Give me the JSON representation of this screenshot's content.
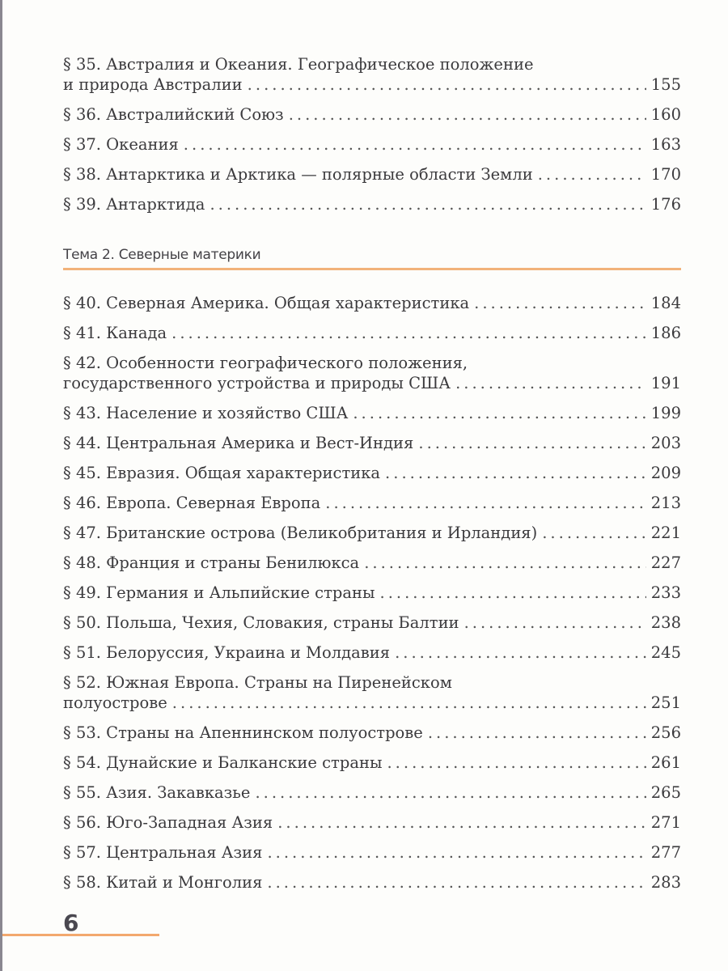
{
  "colors": {
    "accent": "#f2b27a",
    "text": "#3b3a3d"
  },
  "section_a": [
    {
      "lines": [
        "§ 35. Австралия и Океания. Географическое положение",
        "и природа Австралии"
      ],
      "page": "155"
    },
    {
      "lines": [
        "§ 36. Австралийский Союз"
      ],
      "page": "160"
    },
    {
      "lines": [
        "§ 37. Океания"
      ],
      "page": "163"
    },
    {
      "lines": [
        "§ 38. Антарктика и Арктика — полярные области Земли"
      ],
      "page": "170"
    },
    {
      "lines": [
        "§ 39. Антарктида"
      ],
      "page": "176"
    }
  ],
  "theme_heading": "Тема 2. Северные материки",
  "section_b": [
    {
      "lines": [
        "§ 40. Северная Америка. Общая характеристика"
      ],
      "page": "184"
    },
    {
      "lines": [
        "§ 41. Канада"
      ],
      "page": "186"
    },
    {
      "lines": [
        "§ 42. Особенности географического положения,",
        "государственного устройства и природы США"
      ],
      "page": "191"
    },
    {
      "lines": [
        "§ 43. Население и хозяйство США"
      ],
      "page": "199"
    },
    {
      "lines": [
        "§ 44. Центральная Америка и Вест-Индия"
      ],
      "page": "203"
    },
    {
      "lines": [
        "§ 45. Евразия. Общая характеристика"
      ],
      "page": "209"
    },
    {
      "lines": [
        "§ 46. Европа. Северная Европа"
      ],
      "page": "213"
    },
    {
      "lines": [
        "§ 47. Британские острова (Великобритания и Ирландия)"
      ],
      "page": "221"
    },
    {
      "lines": [
        "§ 48. Франция и страны Бенилюкса"
      ],
      "page": "227"
    },
    {
      "lines": [
        "§ 49. Германия и Альпийские страны"
      ],
      "page": "233"
    },
    {
      "lines": [
        "§ 50. Польша, Чехия, Словакия, страны Балтии"
      ],
      "page": "238"
    },
    {
      "lines": [
        "§ 51. Белоруссия, Украина и Молдавия"
      ],
      "page": "245"
    },
    {
      "lines": [
        "§ 52. Южная Европа. Страны на Пиренейском",
        "полуострове"
      ],
      "page": "251"
    },
    {
      "lines": [
        "§ 53. Страны на Апеннинском полуострове"
      ],
      "page": "256"
    },
    {
      "lines": [
        "§ 54. Дунайские и Балканские страны"
      ],
      "page": "261"
    },
    {
      "lines": [
        "§ 55. Азия. Закавказье"
      ],
      "page": "265"
    },
    {
      "lines": [
        "§ 56. Юго-Западная Азия"
      ],
      "page": "271"
    },
    {
      "lines": [
        "§ 57. Центральная Азия"
      ],
      "page": "277"
    },
    {
      "lines": [
        "§ 58. Китай и Монголия"
      ],
      "page": "283"
    }
  ],
  "page_number": "6"
}
